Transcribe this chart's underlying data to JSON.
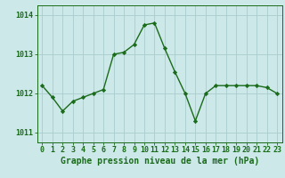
{
  "x": [
    0,
    1,
    2,
    3,
    4,
    5,
    6,
    7,
    8,
    9,
    10,
    11,
    12,
    13,
    14,
    15,
    16,
    17,
    18,
    19,
    20,
    21,
    22,
    23
  ],
  "y": [
    1012.2,
    1011.9,
    1011.55,
    1011.8,
    1011.9,
    1012.0,
    1012.1,
    1013.0,
    1013.05,
    1013.25,
    1013.75,
    1013.8,
    1013.15,
    1012.55,
    1012.0,
    1011.3,
    1012.0,
    1012.2,
    1012.2,
    1012.2,
    1012.2,
    1012.2,
    1012.15,
    1012.0
  ],
  "line_color": "#1a6b1a",
  "marker": "D",
  "marker_size": 2.2,
  "bg_color": "#cce8e8",
  "plot_bg_color": "#cce8e8",
  "grid_color": "#aacccc",
  "bottom_bar_color": "#88bbbb",
  "xlabel": "Graphe pression niveau de la mer (hPa)",
  "ylim": [
    1010.75,
    1014.25
  ],
  "yticks": [
    1011,
    1012,
    1013,
    1014
  ],
  "xticks": [
    0,
    1,
    2,
    3,
    4,
    5,
    6,
    7,
    8,
    9,
    10,
    11,
    12,
    13,
    14,
    15,
    16,
    17,
    18,
    19,
    20,
    21,
    22,
    23
  ],
  "axis_color": "#1a6b1a",
  "label_color": "#1a6b1a",
  "xlabel_fontsize": 7.0,
  "tick_fontsize": 6.0,
  "linewidth": 1.0
}
